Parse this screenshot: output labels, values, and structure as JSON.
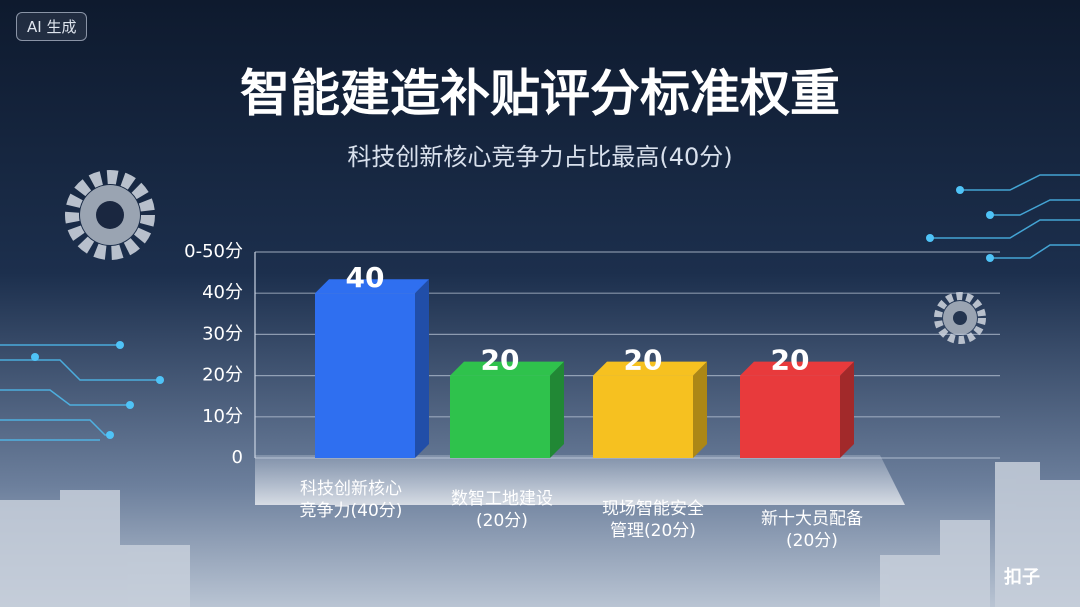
{
  "badge": "AI 生成",
  "watermark": "扣子",
  "chart_data": {
    "type": "bar",
    "title": "智能建造补贴评分标准权重",
    "subtitle": "科技创新核心竞争力占比最高(40分)",
    "categories": [
      "科技创新核心竞争力(40分)",
      "数智工地建设(20分)",
      "现场智能安全管理(20分)",
      "新十大员配备(20分)"
    ],
    "values": [
      40,
      20,
      20,
      20
    ],
    "colors": [
      "#2f6ff0",
      "#2fc24c",
      "#f6c120",
      "#e83a3c"
    ],
    "ylim": [
      0,
      50
    ],
    "yticks": [
      0,
      {
        "value": 10,
        "label": "10分"
      },
      {
        "value": 20,
        "label": "20分"
      },
      {
        "value": 30,
        "label": "30分"
      },
      {
        "value": 40,
        "label": "40分"
      },
      {
        "value": 50,
        "label": "0-50分"
      }
    ],
    "grid": true
  }
}
